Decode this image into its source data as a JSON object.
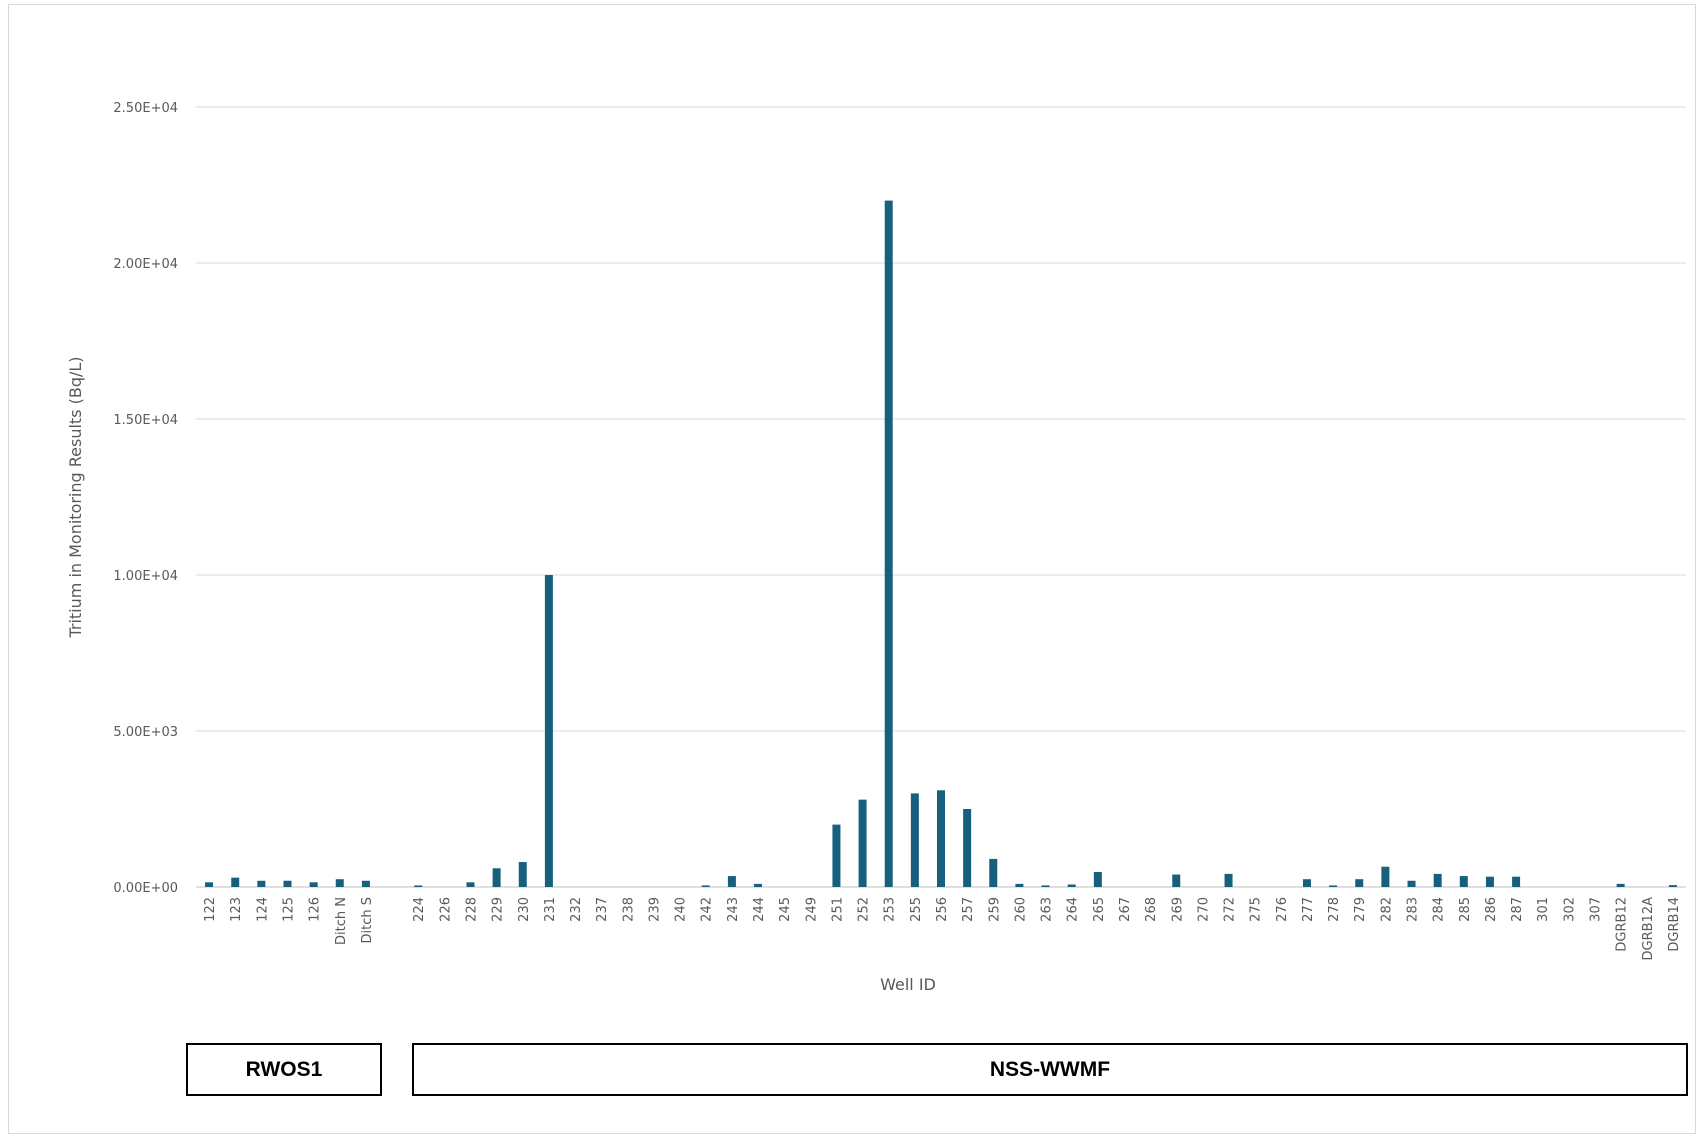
{
  "chart_data": {
    "type": "bar",
    "title": "",
    "xlabel": "Well ID",
    "ylabel": "Tritium in Monitoring Results (Bq/L)",
    "ylim": [
      0,
      25000
    ],
    "yticks": [
      0,
      5000,
      10000,
      15000,
      20000,
      25000
    ],
    "ytick_labels": [
      "0.00E+00",
      "5.00E+03",
      "1.00E+04",
      "1.50E+04",
      "2.00E+04",
      "2.50E+04"
    ],
    "grid": true,
    "legend": "none",
    "bar_color": "#17607d",
    "categories": [
      "122",
      "123",
      "124",
      "125",
      "126",
      "Ditch N",
      "Ditch S",
      "",
      "224",
      "226",
      "228",
      "229",
      "230",
      "231",
      "232",
      "237",
      "238",
      "239",
      "240",
      "242",
      "243",
      "244",
      "245",
      "249",
      "251",
      "252",
      "253",
      "255",
      "256",
      "257",
      "259",
      "260",
      "263",
      "264",
      "265",
      "267",
      "268",
      "269",
      "270",
      "272",
      "275",
      "276",
      "277",
      "278",
      "279",
      "282",
      "283",
      "284",
      "285",
      "286",
      "287",
      "301",
      "302",
      "307",
      "DGRB12",
      "DGRB12A",
      "DGRB14"
    ],
    "values": [
      150,
      300,
      200,
      200,
      150,
      250,
      200,
      0,
      50,
      0,
      150,
      600,
      800,
      10000,
      0,
      0,
      0,
      0,
      0,
      50,
      350,
      100,
      0,
      0,
      2000,
      2800,
      22000,
      3000,
      3100,
      2500,
      900,
      100,
      50,
      80,
      480,
      0,
      0,
      400,
      0,
      420,
      0,
      0,
      250,
      50,
      250,
      650,
      200,
      420,
      350,
      330,
      330,
      0,
      0,
      0,
      100,
      0,
      60
    ],
    "groups": [
      {
        "label": "RWOS1",
        "members": [
          "122",
          "123",
          "124",
          "125",
          "126",
          "Ditch N",
          "Ditch S"
        ]
      },
      {
        "label": "NSS-WWMF",
        "members": [
          "224",
          "226",
          "228",
          "229",
          "230",
          "231",
          "232",
          "237",
          "238",
          "239",
          "240",
          "242",
          "243",
          "244",
          "245",
          "249",
          "251",
          "252",
          "253",
          "255",
          "256",
          "257",
          "259",
          "260",
          "263",
          "264",
          "265",
          "267",
          "268",
          "269",
          "270",
          "272",
          "275",
          "276",
          "277",
          "278",
          "279",
          "282",
          "283",
          "284",
          "285",
          "286",
          "287",
          "301",
          "302",
          "307",
          "DGRB12",
          "DGRB12A",
          "DGRB14"
        ]
      }
    ]
  }
}
